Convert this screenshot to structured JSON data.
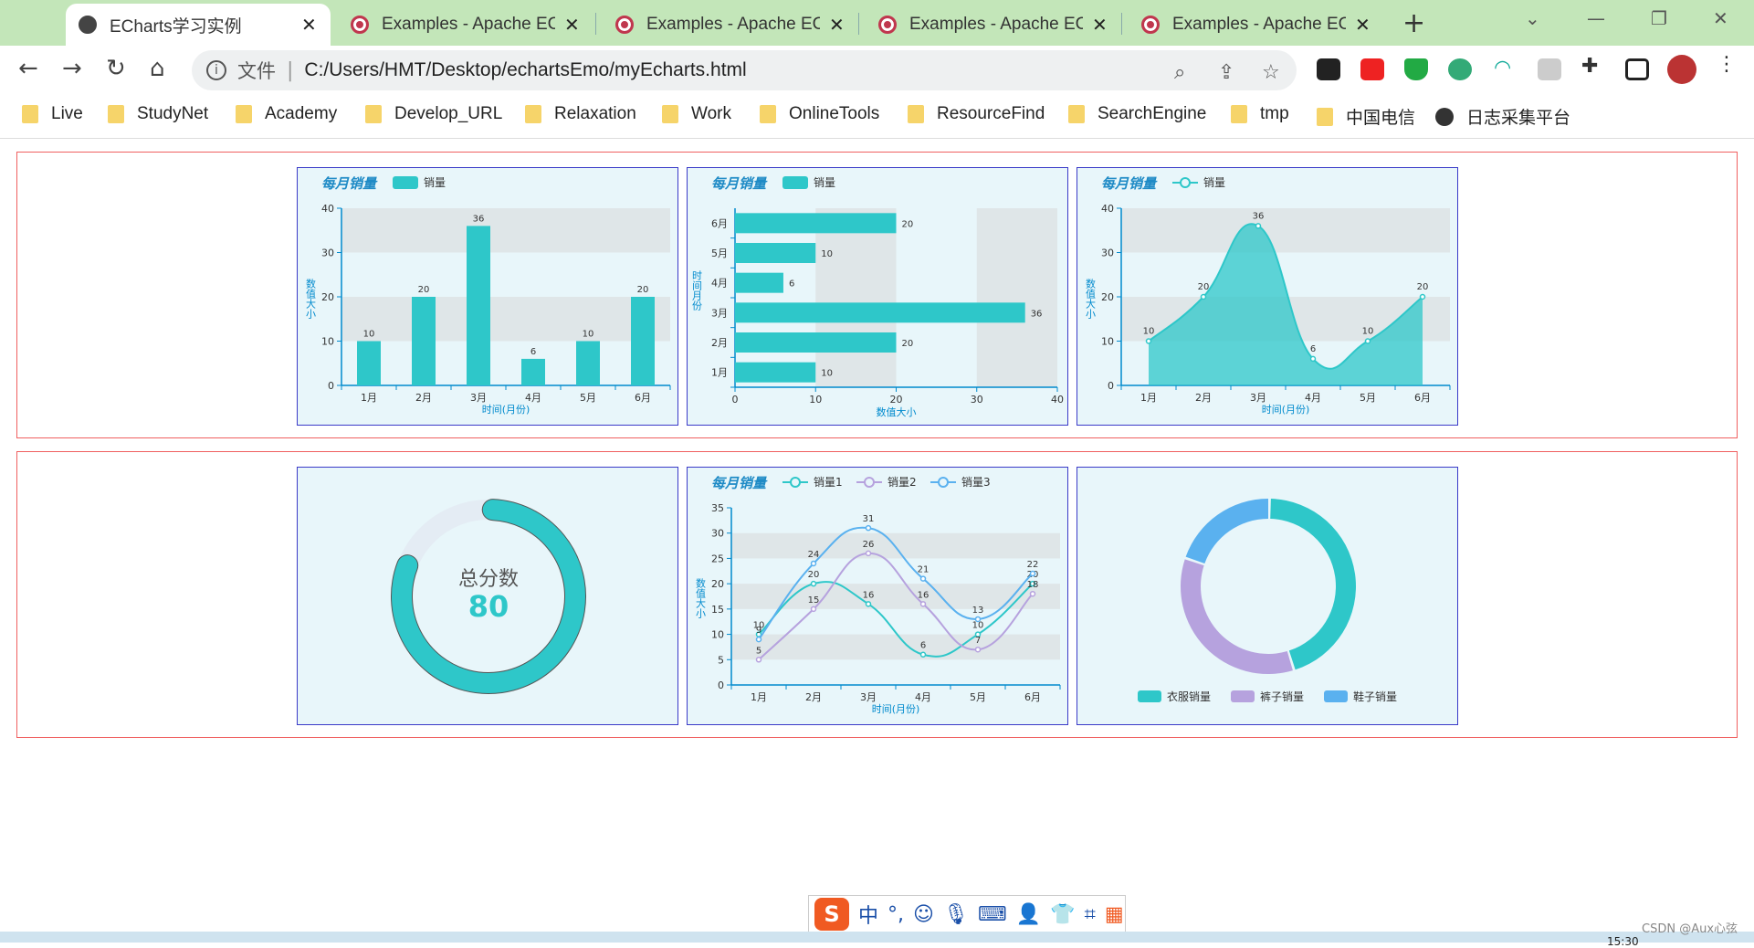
{
  "browser": {
    "tabs": [
      {
        "title": "ECharts学习实例",
        "active": true,
        "icon": "globe-icon"
      },
      {
        "title": "Examples - Apache ECharts",
        "active": false,
        "icon": "apache-echarts-icon"
      },
      {
        "title": "Examples - Apache ECharts",
        "active": false,
        "icon": "apache-echarts-icon"
      },
      {
        "title": "Examples - Apache ECharts",
        "active": false,
        "icon": "apache-echarts-icon"
      },
      {
        "title": "Examples - Apache ECharts",
        "active": false,
        "icon": "apache-echarts-icon"
      }
    ],
    "address": {
      "scheme_label": "文件",
      "url": "C:/Users/HMT/Desktop/echartsEmo/myEcharts.html"
    },
    "bookmarks": [
      "Live",
      "StudyNet",
      "Academy",
      "Develop_URL",
      "Relaxation",
      "Work",
      "OnlineTools",
      "ResourceFind",
      "SearchEngine",
      "tmp",
      "中国电信",
      "日志采集平台"
    ]
  },
  "ime": {
    "logo": "S",
    "mode": "中",
    "punct": "°,"
  },
  "watermark": "CSDN @Aux心弦",
  "clock": "15:30",
  "colors": {
    "teal": "#2ec7c9",
    "purple": "#b6a2de",
    "blue": "#5ab1ef",
    "axis": "#008acd"
  },
  "chart_data": [
    {
      "type": "bar",
      "title": "每月销量",
      "legend": [
        "销量"
      ],
      "categories": [
        "1月",
        "2月",
        "3月",
        "4月",
        "5月",
        "6月"
      ],
      "values": [
        10,
        20,
        36,
        6,
        10,
        20
      ],
      "ylim": [
        0,
        40
      ],
      "yticks": [
        "0",
        "10",
        "20",
        "30",
        "40"
      ],
      "xlabel": "时间(月份)",
      "ylabel": "数值大小"
    },
    {
      "type": "bar",
      "orientation": "horizontal",
      "title": "每月销量",
      "legend": [
        "销量"
      ],
      "categories": [
        "1月",
        "2月",
        "3月",
        "4月",
        "5月",
        "6月"
      ],
      "values": [
        10,
        20,
        36,
        6,
        10,
        20
      ],
      "xlim": [
        0,
        40
      ],
      "xticks": [
        "0",
        "10",
        "20",
        "30",
        "40"
      ],
      "xlabel": "数值大小",
      "ylabel": "时间月份"
    },
    {
      "type": "area",
      "title": "每月销量",
      "legend": [
        "销量"
      ],
      "categories": [
        "1月",
        "2月",
        "3月",
        "4月",
        "5月",
        "6月"
      ],
      "values": [
        10,
        20,
        36,
        6,
        10,
        20
      ],
      "ylim": [
        0,
        40
      ],
      "yticks": [
        "0",
        "10",
        "20",
        "30",
        "40"
      ],
      "xlabel": "时间(月份)",
      "ylabel": "数值大小"
    },
    {
      "type": "gauge",
      "label": "总分数",
      "value": 80,
      "max": 100
    },
    {
      "type": "line",
      "title": "每月销量",
      "categories": [
        "1月",
        "2月",
        "3月",
        "4月",
        "5月",
        "6月"
      ],
      "series": [
        {
          "name": "销量1",
          "values": [
            10,
            20,
            16,
            6,
            10,
            20
          ]
        },
        {
          "name": "销量2",
          "values": [
            5,
            15,
            26,
            16,
            7,
            18
          ]
        },
        {
          "name": "销量3",
          "values": [
            9,
            24,
            31,
            21,
            13,
            22
          ]
        }
      ],
      "ylim": [
        0,
        35
      ],
      "yticks": [
        "0",
        "5",
        "10",
        "15",
        "20",
        "25",
        "30",
        "35"
      ],
      "xlabel": "时间(月份)",
      "ylabel": "数值大小"
    },
    {
      "type": "pie",
      "donut": true,
      "slices": [
        {
          "name": "衣服销量",
          "value": 45
        },
        {
          "name": "裤子销量",
          "value": 35
        },
        {
          "name": "鞋子销量",
          "value": 20
        }
      ]
    }
  ]
}
